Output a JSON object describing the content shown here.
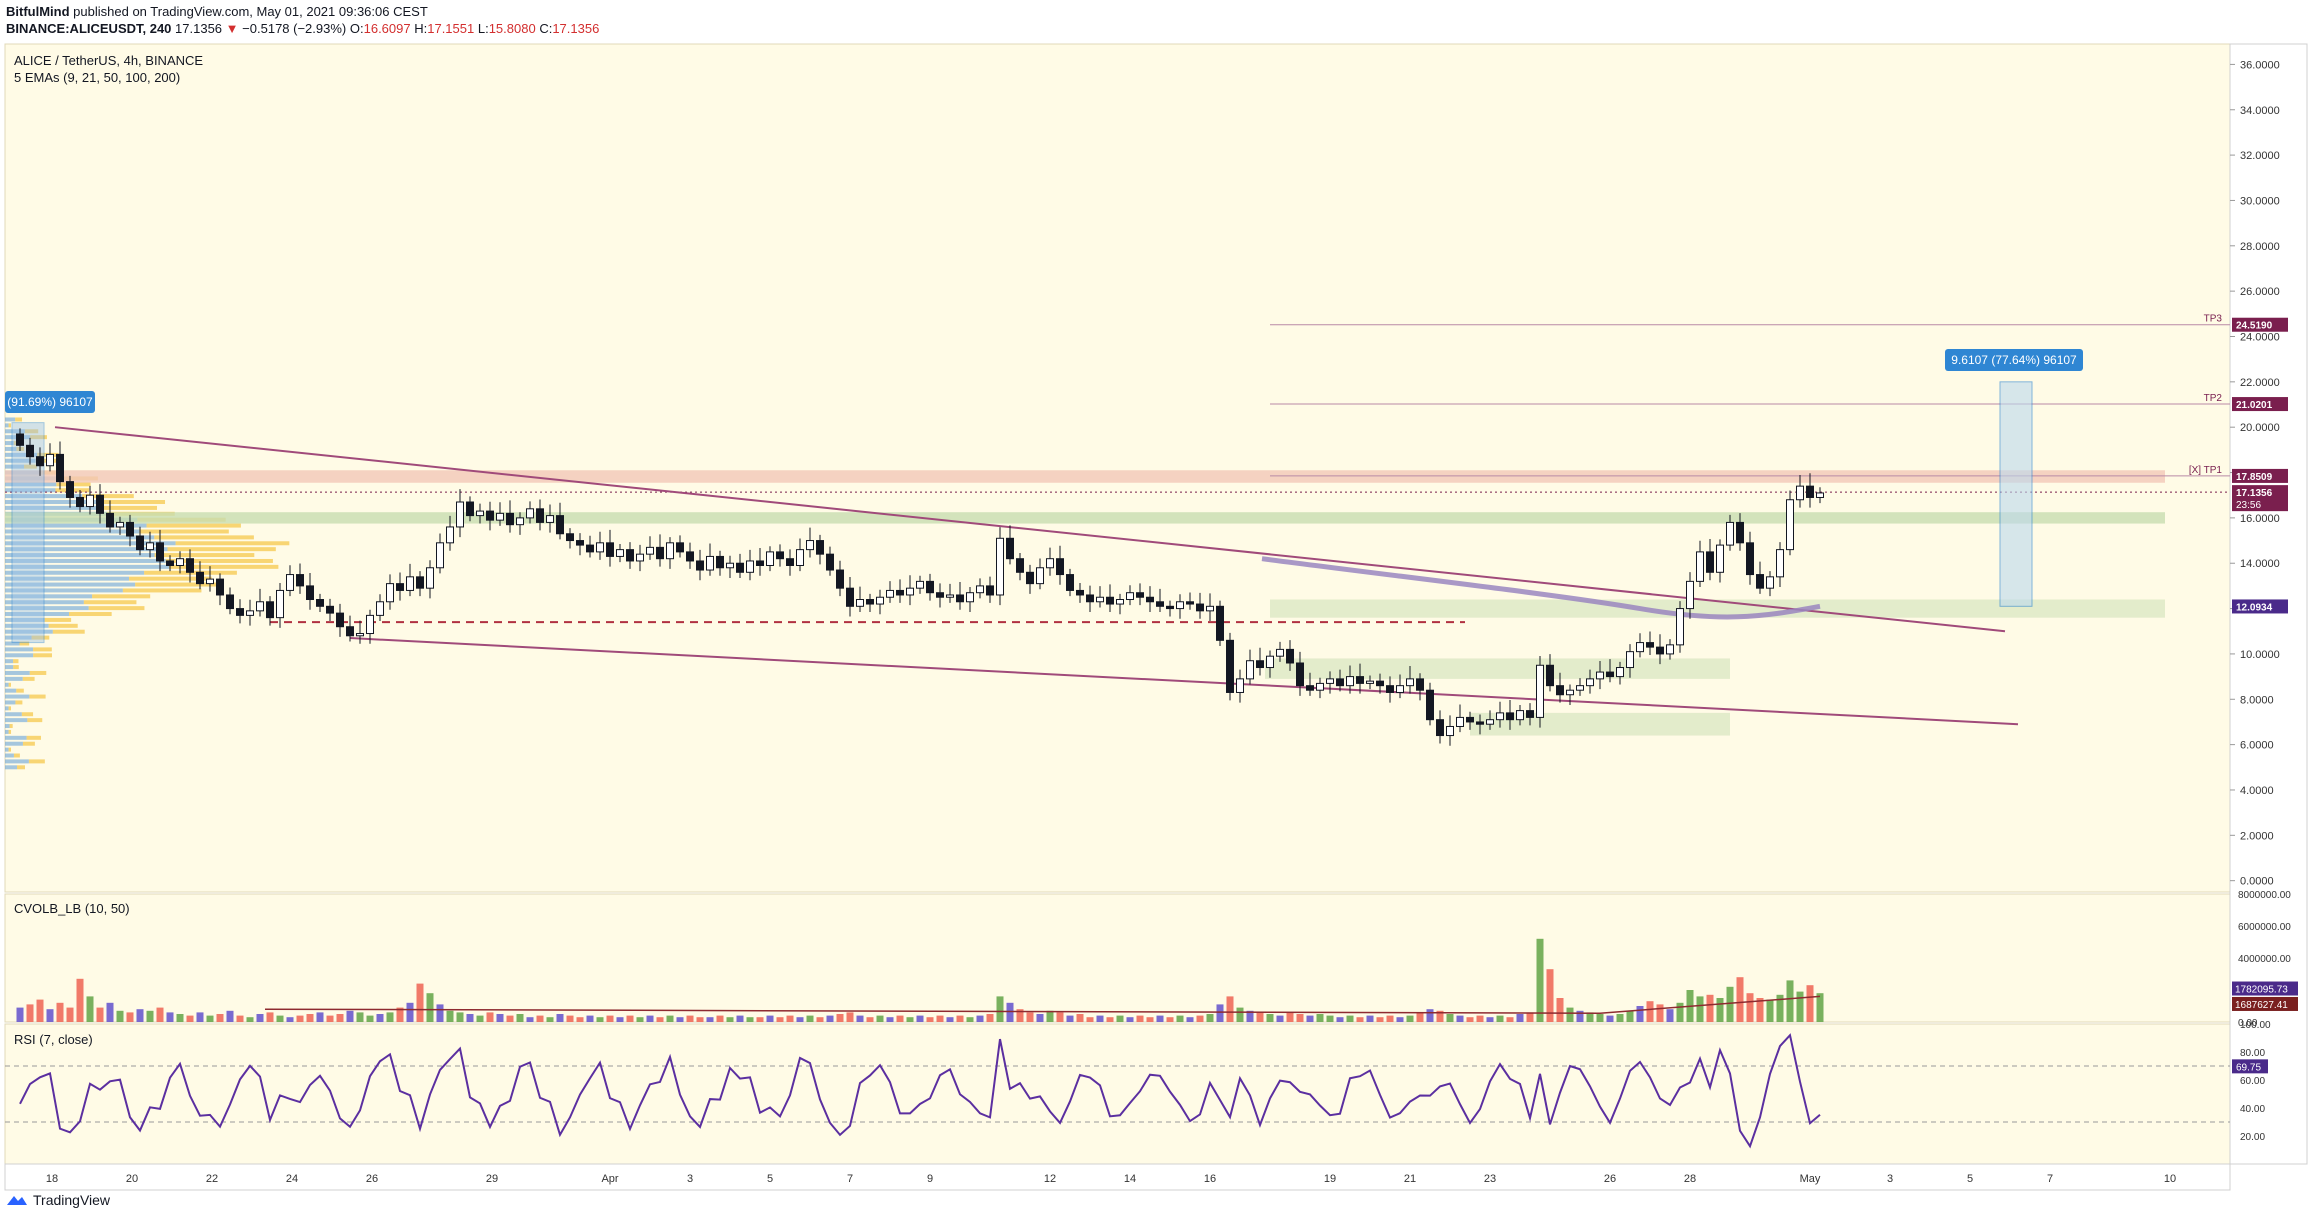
{
  "header": {
    "author": "BitfulMind",
    "published": "published on TradingView.com, May 01, 2021 09:36:06 CEST",
    "symbol_line": "BINANCE:ALICEUSDT, 240",
    "last": "17.1356",
    "change": "−0.5178 (−2.93%)",
    "o_label": "O:",
    "o": "16.6097",
    "h_label": "H:",
    "h": "17.1551",
    "l_label": "L:",
    "l": "15.8080",
    "c_label": "C:",
    "c": "17.1356"
  },
  "panes": {
    "main_title": "ALICE / TetherUS, 4h, BINANCE",
    "main_subtitle": "5 EMAs (9, 21, 50, 100, 200)",
    "volume_title": "CVOLB_LB (10, 50)",
    "rsi_title": "RSI (7, close)"
  },
  "footer": {
    "brand": "TradingView"
  },
  "colors": {
    "background": "#fffbe6",
    "up": "#ffffff",
    "down": "#131722",
    "trendline": "#a04a7a",
    "ema": "#9a86c0",
    "vol_up": "#6aa84f",
    "vol_down": "#ef6c5b",
    "vol_neutral": "#6a5acd",
    "rsi": "#5b2fa0",
    "zone_green": "#c8ddb0",
    "zone_red": "#f2c8b8",
    "profile_blue": "#5b9bd5",
    "profile_yellow": "#f5c542",
    "measure": "#2f86d3"
  },
  "chart_data": {
    "type": "candlestick",
    "symbol": "ALICE / TetherUS",
    "timeframe": "4h",
    "ylim": [
      -0.5,
      36.9
    ],
    "y_ticks": [
      "36.0000",
      "34.0000",
      "32.0000",
      "30.0000",
      "28.0000",
      "26.0000",
      "24.0000",
      "22.0000",
      "20.0000",
      "18.0000",
      "16.0000",
      "14.0000",
      "12.0000",
      "10.0000",
      "8.0000",
      "6.0000",
      "4.0000",
      "2.0000",
      "0.0000"
    ],
    "x_ticks": [
      "18",
      "20",
      "22",
      "24",
      "26",
      "29",
      "Apr",
      "3",
      "5",
      "7",
      "9",
      "12",
      "14",
      "16",
      "19",
      "21",
      "23",
      "26",
      "28",
      "May",
      "3",
      "5",
      "7",
      "10"
    ],
    "closes": [
      19.2,
      18.7,
      18.3,
      18.8,
      17.6,
      16.9,
      16.5,
      17.0,
      16.2,
      15.6,
      15.8,
      15.2,
      14.6,
      14.9,
      14.1,
      13.9,
      14.2,
      13.6,
      13.1,
      13.3,
      12.6,
      12.0,
      11.7,
      11.9,
      12.3,
      11.6,
      12.8,
      13.5,
      13.0,
      12.4,
      12.1,
      11.8,
      11.2,
      10.8,
      10.9,
      11.7,
      12.3,
      13.1,
      12.8,
      13.4,
      12.9,
      13.8,
      14.9,
      15.6,
      16.7,
      16.1,
      16.3,
      15.9,
      16.2,
      15.7,
      16.0,
      16.4,
      15.8,
      16.1,
      15.3,
      15.0,
      14.8,
      14.5,
      14.9,
      14.3,
      14.6,
      14.1,
      14.4,
      14.7,
      14.2,
      14.9,
      14.5,
      14.1,
      13.7,
      14.3,
      13.8,
      14.0,
      13.6,
      14.1,
      13.9,
      14.5,
      14.2,
      13.9,
      14.6,
      15.0,
      14.4,
      13.7,
      12.9,
      12.1,
      12.4,
      12.2,
      12.5,
      12.8,
      12.6,
      12.9,
      13.2,
      12.7,
      12.5,
      12.6,
      12.3,
      12.7,
      13.0,
      12.6,
      15.1,
      14.2,
      13.6,
      13.1,
      13.8,
      14.2,
      13.5,
      12.8,
      12.6,
      12.3,
      12.5,
      12.2,
      12.4,
      12.7,
      12.5,
      12.3,
      12.1,
      12.0,
      12.3,
      12.2,
      11.9,
      12.1,
      10.6,
      8.3,
      8.9,
      9.7,
      9.4,
      9.9,
      10.2,
      9.6,
      8.6,
      8.4,
      8.7,
      8.9,
      8.6,
      9.0,
      8.7,
      8.8,
      8.6,
      8.3,
      8.6,
      8.9,
      8.4,
      7.1,
      6.4,
      6.8,
      7.2,
      7.0,
      6.9,
      7.1,
      7.4,
      7.1,
      7.5,
      7.2,
      9.5,
      8.6,
      8.2,
      8.4,
      8.6,
      8.9,
      9.2,
      9.0,
      9.4,
      10.1,
      10.5,
      10.3,
      10.0,
      10.4,
      12.0,
      13.2,
      14.5,
      13.6,
      14.8,
      15.8,
      14.9,
      13.5,
      12.9,
      13.4,
      14.6,
      16.8,
      17.4,
      16.9,
      17.1
    ],
    "horizontal_levels": [
      {
        "label": "TP3",
        "value": 24.519,
        "price_label": "24.5190"
      },
      {
        "label": "TP2",
        "value": 21.0201,
        "price_label": "21.0201"
      },
      {
        "label": "[X] TP1",
        "value": 17.8509,
        "price_label": "17.8509"
      }
    ],
    "current_price": {
      "value": 17.1356,
      "label": "17.1356",
      "countdown": "23:56"
    },
    "ema_level": {
      "value": 12.0934,
      "label": "12.0934"
    },
    "measure_boxes": [
      {
        "label": "9.6107 (77.64%) 96107"
      },
      {
        "label": "(91.69%) 96107"
      }
    ],
    "volume": {
      "ylim": [
        0,
        8000000
      ],
      "y_ticks": [
        "8000000.00",
        "6000000.00",
        "4000000.00",
        "2000000.00",
        "0.00"
      ],
      "last_labels": [
        "1782095.73",
        "1687627.41"
      ],
      "values": [
        0.9,
        1.1,
        1.4,
        0.8,
        1.2,
        0.9,
        2.7,
        1.6,
        0.9,
        1.2,
        0.7,
        0.6,
        0.8,
        0.7,
        0.9,
        0.6,
        0.5,
        0.4,
        0.6,
        0.4,
        0.5,
        0.7,
        0.4,
        0.3,
        0.5,
        0.6,
        0.4,
        0.3,
        0.4,
        0.5,
        0.6,
        0.4,
        0.5,
        0.7,
        0.6,
        0.4,
        0.5,
        0.6,
        0.9,
        1.2,
        2.4,
        1.8,
        1.1,
        0.7,
        0.6,
        0.5,
        0.4,
        0.6,
        0.5,
        0.4,
        0.5,
        0.3,
        0.4,
        0.3,
        0.5,
        0.4,
        0.3,
        0.4,
        0.3,
        0.4,
        0.3,
        0.4,
        0.3,
        0.4,
        0.3,
        0.4,
        0.3,
        0.4,
        0.3,
        0.3,
        0.4,
        0.3,
        0.4,
        0.3,
        0.3,
        0.4,
        0.3,
        0.4,
        0.3,
        0.4,
        0.3,
        0.4,
        0.5,
        0.6,
        0.4,
        0.3,
        0.4,
        0.3,
        0.4,
        0.3,
        0.4,
        0.3,
        0.4,
        0.3,
        0.4,
        0.3,
        0.4,
        0.5,
        1.6,
        1.2,
        0.8,
        0.6,
        0.5,
        0.7,
        0.6,
        0.4,
        0.5,
        0.3,
        0.4,
        0.3,
        0.4,
        0.3,
        0.4,
        0.3,
        0.4,
        0.3,
        0.4,
        0.3,
        0.4,
        0.5,
        1.1,
        1.6,
        0.9,
        0.7,
        0.6,
        0.5,
        0.4,
        0.6,
        0.5,
        0.4,
        0.5,
        0.4,
        0.3,
        0.4,
        0.3,
        0.4,
        0.3,
        0.4,
        0.3,
        0.4,
        0.6,
        0.8,
        0.7,
        0.5,
        0.4,
        0.3,
        0.4,
        0.3,
        0.4,
        0.3,
        0.5,
        0.6,
        5.2,
        3.3,
        1.5,
        0.9,
        0.7,
        0.6,
        0.5,
        0.4,
        0.5,
        0.7,
        1.0,
        1.3,
        1.1,
        0.8,
        1.2,
        2.0,
        1.6,
        1.7,
        1.5,
        2.2,
        2.8,
        1.8,
        1.5,
        1.4,
        1.7,
        2.6,
        1.9,
        2.3,
        1.8
      ]
    },
    "rsi": {
      "ylim": [
        0,
        100
      ],
      "y_ticks": [
        "100.00",
        "80.00",
        "60.00",
        "40.00",
        "20.00"
      ],
      "last_label": "69.75"
    }
  }
}
